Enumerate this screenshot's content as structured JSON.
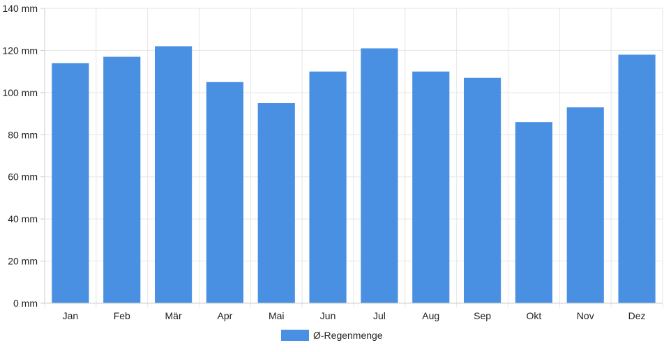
{
  "chart_data": {
    "type": "bar",
    "categories": [
      "Jan",
      "Feb",
      "Mär",
      "Apr",
      "Mai",
      "Jun",
      "Jul",
      "Aug",
      "Sep",
      "Okt",
      "Nov",
      "Dez"
    ],
    "series": [
      {
        "name": "Ø-Regenmenge",
        "values": [
          114,
          117,
          122,
          105,
          95,
          110,
          121,
          110,
          107,
          86,
          93,
          118
        ],
        "color": "#4a90e2"
      }
    ],
    "y_ticks": [
      "0 mm",
      "20 mm",
      "40 mm",
      "60 mm",
      "80 mm",
      "100 mm",
      "120 mm",
      "140 mm"
    ],
    "ylim": [
      0,
      140
    ],
    "y_step": 20,
    "grid": true,
    "legend_position": "bottom-center",
    "title": "",
    "xlabel": "",
    "ylabel": ""
  }
}
